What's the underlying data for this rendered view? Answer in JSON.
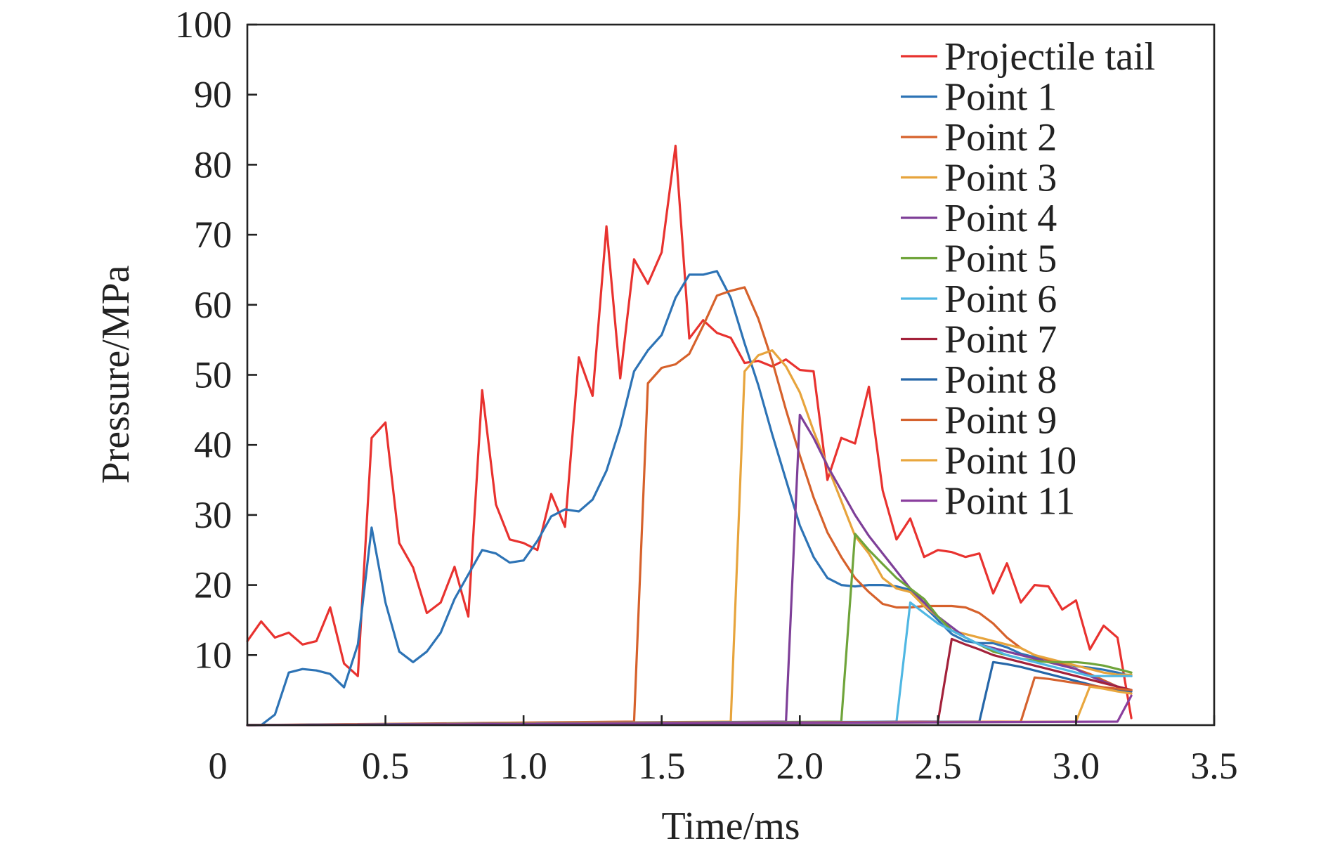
{
  "chart_data": {
    "type": "line",
    "xlabel": "Time/ms",
    "ylabel": "Pressure/MPa",
    "xlim": [
      0,
      3.5
    ],
    "ylim": [
      0,
      100
    ],
    "xticks": [
      0.5,
      1.0,
      1.5,
      2.0,
      2.5,
      3.0,
      3.5
    ],
    "xtick_labels": [
      "0.5",
      "1.0",
      "1.5",
      "2.0",
      "2.5",
      "3.0",
      "3.5"
    ],
    "yticks": [
      10,
      20,
      30,
      40,
      50,
      60,
      70,
      80,
      90,
      100
    ],
    "ytick_labels": [
      "10",
      "20",
      "30",
      "40",
      "50",
      "60",
      "70",
      "80",
      "90",
      "100"
    ],
    "origin_label": "0",
    "grid": false,
    "legend_position": "top-right",
    "series": [
      {
        "name": "Projectile tail",
        "color": "#e8322f",
        "x": [
          0,
          0.05,
          0.1,
          0.15,
          0.2,
          0.25,
          0.3,
          0.35,
          0.4,
          0.45,
          0.5,
          0.55,
          0.6,
          0.65,
          0.7,
          0.75,
          0.8,
          0.85,
          0.9,
          0.95,
          1.0,
          1.05,
          1.1,
          1.15,
          1.2,
          1.25,
          1.3,
          1.35,
          1.4,
          1.45,
          1.5,
          1.55,
          1.6,
          1.65,
          1.7,
          1.75,
          1.8,
          1.85,
          1.9,
          1.95,
          2.0,
          2.05,
          2.1,
          2.15,
          2.2,
          2.25,
          2.3,
          2.35,
          2.4,
          2.45,
          2.5,
          2.55,
          2.6,
          2.65,
          2.7,
          2.75,
          2.8,
          2.85,
          2.9,
          2.95,
          3.0,
          3.05,
          3.1,
          3.15,
          3.2
        ],
        "y": [
          12,
          14.8,
          12.5,
          13.2,
          11.5,
          12,
          16.8,
          8.8,
          7,
          41,
          43.2,
          26,
          22.5,
          16,
          17.5,
          22.6,
          15.5,
          47.8,
          31.5,
          26.5,
          26,
          25,
          33,
          28.3,
          52.5,
          47,
          71.2,
          49.5,
          66.5,
          63,
          67.5,
          82.7,
          55.2,
          57.8,
          56,
          55.3,
          51.7,
          52,
          51.2,
          52.2,
          50.7,
          50.5,
          35,
          41,
          40.2,
          48.3,
          33.5,
          26.5,
          29.5,
          24,
          25,
          24.7,
          24,
          24.5,
          18.8,
          23.1,
          17.5,
          20,
          19.8,
          16.5,
          17.8,
          10.8,
          14.2,
          12.5,
          1
        ]
      },
      {
        "name": "Point 1",
        "color": "#2d73b5",
        "x": [
          0,
          0.05,
          0.1,
          0.15,
          0.2,
          0.25,
          0.3,
          0.35,
          0.4,
          0.45,
          0.5,
          0.55,
          0.6,
          0.65,
          0.7,
          0.75,
          0.8,
          0.85,
          0.9,
          0.95,
          1.0,
          1.05,
          1.1,
          1.15,
          1.2,
          1.25,
          1.3,
          1.35,
          1.4,
          1.45,
          1.5,
          1.55,
          1.6,
          1.65,
          1.7,
          1.75,
          1.8,
          1.85,
          1.9,
          1.95,
          2.0,
          2.05,
          2.1,
          2.15,
          2.2,
          2.25,
          2.3,
          2.35,
          2.4,
          2.45,
          2.5,
          2.55,
          2.6,
          2.65,
          2.7,
          2.75,
          2.8,
          2.85,
          2.9,
          2.95,
          3.0,
          3.05,
          3.1,
          3.15,
          3.2
        ],
        "y": [
          0,
          0,
          1.5,
          7.5,
          8,
          7.8,
          7.3,
          5.4,
          11.5,
          28.2,
          17.5,
          10.5,
          9,
          10.5,
          13.2,
          18,
          21.5,
          25,
          24.5,
          23.2,
          23.5,
          26.3,
          29.8,
          30.8,
          30.5,
          32.2,
          36.3,
          42.5,
          50.5,
          53.5,
          55.7,
          61,
          64.3,
          64.3,
          64.8,
          61,
          54.5,
          48.5,
          41.5,
          35,
          28.5,
          24,
          21,
          20,
          19.8,
          20,
          20,
          19.8,
          19.3,
          17,
          15,
          13,
          12,
          11.7,
          11.7,
          11.1,
          10.2,
          9.7,
          9.4,
          9,
          8.4,
          8.2,
          7.9,
          7.5,
          7
        ]
      },
      {
        "name": "Point 2",
        "color": "#d6612b",
        "x": [
          0,
          1.4,
          1.45,
          1.5,
          1.55,
          1.6,
          1.65,
          1.7,
          1.75,
          1.8,
          1.85,
          1.9,
          1.95,
          2.0,
          2.05,
          2.1,
          2.15,
          2.2,
          2.25,
          2.3,
          2.35,
          2.4,
          2.45,
          2.5,
          2.55,
          2.6,
          2.65,
          2.7,
          2.75,
          2.8,
          2.85,
          2.9,
          2.95,
          3.0,
          3.05,
          3.1,
          3.15,
          3.2
        ],
        "y": [
          0,
          0.5,
          48.8,
          51,
          51.5,
          53,
          57,
          61.3,
          62,
          62.5,
          58,
          52,
          45,
          38.5,
          32.5,
          27.5,
          24,
          21,
          19,
          17.3,
          16.8,
          16.8,
          17,
          17,
          17,
          16.8,
          16,
          14.5,
          12.5,
          11,
          10,
          9.3,
          8.7,
          8,
          7.3,
          6.4,
          5.5,
          5
        ]
      },
      {
        "name": "Point 3",
        "color": "#e7a43c",
        "x": [
          0,
          1.75,
          1.8,
          1.85,
          1.9,
          1.95,
          2.0,
          2.05,
          2.1,
          2.15,
          2.2,
          2.25,
          2.3,
          2.35,
          2.4,
          2.45,
          2.5,
          2.55,
          2.6,
          2.65,
          2.7,
          2.75,
          2.8,
          2.85,
          2.9,
          2.95,
          3.0,
          3.05,
          3.1,
          3.15,
          3.2
        ],
        "y": [
          0,
          0.5,
          50.5,
          52.8,
          53.5,
          51.2,
          47.5,
          42,
          37,
          32,
          27,
          24.5,
          21,
          19.5,
          19,
          17,
          15.5,
          13.5,
          13,
          12.5,
          12,
          11.5,
          11,
          10,
          9.5,
          9,
          8.5,
          8,
          7.5,
          7.2,
          7.2
        ]
      },
      {
        "name": "Point 4",
        "color": "#7e3f98",
        "x": [
          0,
          1.95,
          2.0,
          2.05,
          2.1,
          2.15,
          2.2,
          2.25,
          2.3,
          2.35,
          2.4,
          2.45,
          2.5,
          2.55,
          2.6,
          2.65,
          2.7,
          2.75,
          2.8,
          2.85,
          2.9,
          2.95,
          3.0,
          3.05,
          3.1,
          3.15,
          3.2
        ],
        "y": [
          0,
          0.5,
          44.3,
          41,
          37,
          33.5,
          30,
          27,
          24.5,
          22,
          19.5,
          17.5,
          15.5,
          14,
          12.5,
          11.5,
          11,
          10.5,
          10,
          9.5,
          9,
          8.5,
          8,
          7,
          6.2,
          5.5,
          5
        ]
      },
      {
        "name": "Point 5",
        "color": "#6fa43a",
        "x": [
          0,
          2.15,
          2.2,
          2.25,
          2.3,
          2.35,
          2.4,
          2.45,
          2.5,
          2.55,
          2.6,
          2.65,
          2.7,
          2.75,
          2.8,
          2.85,
          2.9,
          2.95,
          3.0,
          3.05,
          3.1,
          3.15,
          3.2
        ],
        "y": [
          0,
          0.5,
          27.3,
          25,
          23,
          21,
          19.5,
          18,
          15.5,
          13.5,
          12.5,
          11.5,
          10.5,
          10,
          9.5,
          9.2,
          9,
          9,
          9,
          8.8,
          8.5,
          8,
          7.5
        ]
      },
      {
        "name": "Point 6",
        "color": "#4fb7e3",
        "x": [
          0,
          2.35,
          2.4,
          2.45,
          2.5,
          2.55,
          2.6,
          2.65,
          2.7,
          2.75,
          2.8,
          2.85,
          2.9,
          2.95,
          3.0,
          3.05,
          3.1,
          3.15,
          3.2
        ],
        "y": [
          0,
          0.5,
          17.5,
          16,
          14.5,
          13.5,
          12.5,
          11.5,
          10.8,
          10,
          9.5,
          9,
          8.5,
          8,
          7.5,
          7,
          7,
          7,
          7
        ]
      },
      {
        "name": "Point 7",
        "color": "#a3213a",
        "x": [
          0,
          2.5,
          2.55,
          2.6,
          2.65,
          2.7,
          2.75,
          2.8,
          2.85,
          2.9,
          2.95,
          3.0,
          3.05,
          3.1,
          3.15,
          3.2
        ],
        "y": [
          0,
          0.5,
          12.3,
          11.5,
          10.8,
          10,
          9.5,
          9,
          8.5,
          8,
          7.5,
          7,
          6.5,
          6,
          5.5,
          5
        ]
      },
      {
        "name": "Point 8",
        "color": "#2566a8",
        "x": [
          0,
          2.65,
          2.7,
          2.75,
          2.8,
          2.85,
          2.9,
          2.95,
          3.0,
          3.05,
          3.1,
          3.15,
          3.2
        ],
        "y": [
          0,
          0.5,
          9,
          8.7,
          8.3,
          7.8,
          7.3,
          6.8,
          6.3,
          5.8,
          5.3,
          5,
          4.8
        ]
      },
      {
        "name": "Point 9",
        "color": "#d5622e",
        "x": [
          0,
          2.8,
          2.85,
          2.9,
          2.95,
          3.0,
          3.05,
          3.1,
          3.15,
          3.2
        ],
        "y": [
          0,
          0.5,
          6.8,
          6.6,
          6.3,
          6,
          5.7,
          5.4,
          5.2,
          5
        ]
      },
      {
        "name": "Point 10",
        "color": "#e9a73e",
        "x": [
          0,
          3.0,
          3.05,
          3.1,
          3.15,
          3.2
        ],
        "y": [
          0,
          0.5,
          5.5,
          5.2,
          4.8,
          4.5
        ]
      },
      {
        "name": "Point 11",
        "color": "#8a3f9e",
        "x": [
          0,
          3.15,
          3.2
        ],
        "y": [
          0,
          0.5,
          4.2
        ]
      }
    ]
  }
}
